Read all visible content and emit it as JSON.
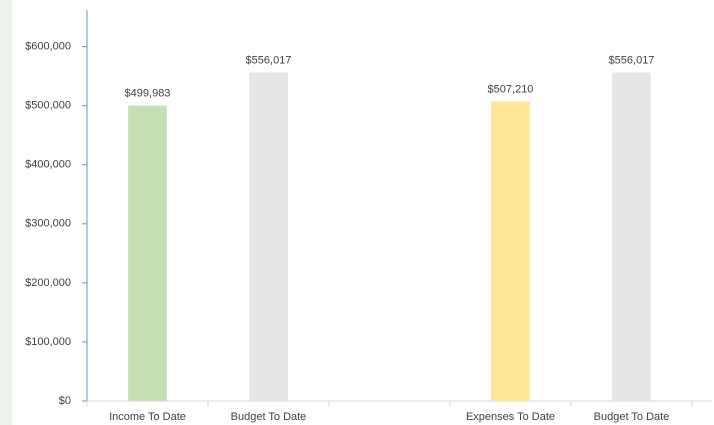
{
  "chart_data": {
    "type": "bar",
    "categories": [
      "Income To Date",
      "Budget To Date",
      null,
      "Expenses To Date",
      "Budget To Date"
    ],
    "values": [
      499983,
      556017,
      null,
      507210,
      556017
    ],
    "value_labels": [
      "$499,983",
      "$556,017",
      null,
      "$507,210",
      "$556,017"
    ],
    "colors": [
      "#c5e0b4",
      "#e7e6e6",
      null,
      "#ffe699",
      "#e7e6e6"
    ],
    "ylim": [
      0,
      662000
    ],
    "yticks": [
      {
        "value": 0,
        "label": "$0"
      },
      {
        "value": 100000,
        "label": "$100,000"
      },
      {
        "value": 200000,
        "label": "$200,000"
      },
      {
        "value": 300000,
        "label": "$300,000"
      },
      {
        "value": 400000,
        "label": "$400,000"
      },
      {
        "value": 500000,
        "label": "$500,000"
      },
      {
        "value": 600000,
        "label": "$600,000"
      }
    ],
    "grid": false
  }
}
